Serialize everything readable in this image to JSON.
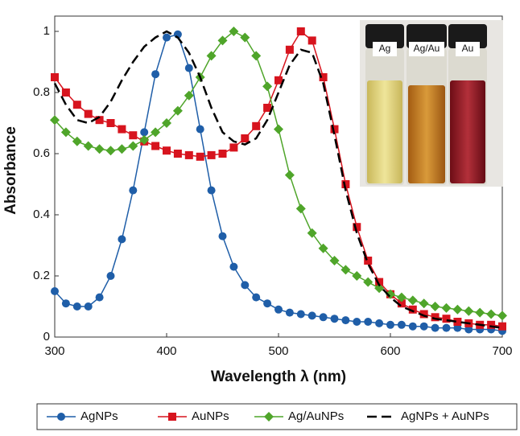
{
  "chart_data": {
    "type": "line",
    "xlabel": "Wavelength λ (nm)",
    "ylabel": "Absorbance",
    "x": [
      300,
      310,
      320,
      330,
      340,
      350,
      360,
      370,
      380,
      390,
      400,
      410,
      420,
      430,
      440,
      450,
      460,
      470,
      480,
      490,
      500,
      510,
      520,
      530,
      540,
      550,
      560,
      570,
      580,
      590,
      600,
      610,
      620,
      630,
      640,
      650,
      660,
      670,
      680,
      690,
      700
    ],
    "xlim": [
      300,
      700
    ],
    "xticks": [
      300,
      400,
      500,
      600,
      700
    ],
    "ylim": [
      0,
      1.05
    ],
    "yticks": [
      0,
      0.2,
      0.4,
      0.6,
      0.8,
      1
    ],
    "series": [
      {
        "name": "AgNPs",
        "color": "#1f5ea8",
        "marker": "circle",
        "dash": false,
        "values": [
          0.15,
          0.11,
          0.1,
          0.1,
          0.13,
          0.2,
          0.32,
          0.48,
          0.67,
          0.86,
          0.98,
          0.99,
          0.88,
          0.68,
          0.48,
          0.33,
          0.23,
          0.17,
          0.13,
          0.11,
          0.09,
          0.08,
          0.075,
          0.07,
          0.065,
          0.06,
          0.055,
          0.05,
          0.05,
          0.045,
          0.04,
          0.04,
          0.035,
          0.035,
          0.03,
          0.03,
          0.03,
          0.025,
          0.025,
          0.025,
          0.02
        ]
      },
      {
        "name": "AuNPs",
        "color": "#d7141e",
        "marker": "square",
        "dash": false,
        "values": [
          0.85,
          0.8,
          0.76,
          0.73,
          0.71,
          0.7,
          0.68,
          0.66,
          0.64,
          0.625,
          0.61,
          0.6,
          0.595,
          0.59,
          0.595,
          0.6,
          0.62,
          0.65,
          0.69,
          0.75,
          0.84,
          0.94,
          1.0,
          0.97,
          0.85,
          0.68,
          0.5,
          0.36,
          0.25,
          0.18,
          0.14,
          0.11,
          0.09,
          0.075,
          0.065,
          0.06,
          0.05,
          0.045,
          0.04,
          0.04,
          0.035
        ]
      },
      {
        "name": "Ag/AuNPs",
        "color": "#4fa52a",
        "marker": "diamond",
        "dash": false,
        "values": [
          0.71,
          0.67,
          0.64,
          0.625,
          0.615,
          0.61,
          0.615,
          0.625,
          0.645,
          0.67,
          0.7,
          0.74,
          0.79,
          0.85,
          0.92,
          0.97,
          1.0,
          0.98,
          0.92,
          0.82,
          0.68,
          0.53,
          0.42,
          0.34,
          0.29,
          0.25,
          0.22,
          0.2,
          0.18,
          0.16,
          0.14,
          0.13,
          0.12,
          0.11,
          0.1,
          0.095,
          0.09,
          0.085,
          0.08,
          0.075,
          0.07
        ]
      },
      {
        "name": "AgNPs + AuNPs",
        "color": "#000000",
        "marker": "none",
        "dash": true,
        "values": [
          0.83,
          0.76,
          0.71,
          0.7,
          0.72,
          0.77,
          0.84,
          0.9,
          0.95,
          0.98,
          1.0,
          0.98,
          0.93,
          0.85,
          0.75,
          0.67,
          0.64,
          0.63,
          0.65,
          0.71,
          0.8,
          0.89,
          0.94,
          0.93,
          0.83,
          0.66,
          0.48,
          0.34,
          0.24,
          0.17,
          0.13,
          0.1,
          0.085,
          0.07,
          0.06,
          0.055,
          0.05,
          0.045,
          0.04,
          0.035,
          0.03
        ]
      }
    ],
    "inset_labels": [
      "Ag",
      "Ag/Au",
      "Au"
    ]
  }
}
